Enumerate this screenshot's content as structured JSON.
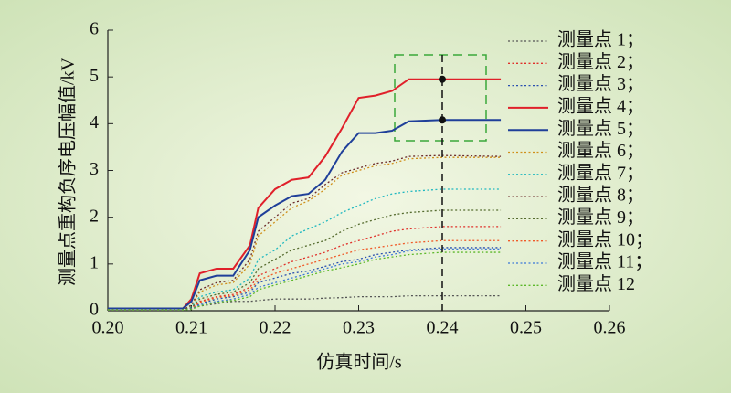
{
  "chart_data": {
    "type": "line",
    "x_label": "仿真时间/s",
    "y_label": "测量点重构负序电压幅值/kV",
    "x": [
      0.2,
      0.209,
      0.21,
      0.211,
      0.213,
      0.215,
      0.217,
      0.218,
      0.22,
      0.222,
      0.224,
      0.226,
      0.228,
      0.23,
      0.232,
      0.234,
      0.236,
      0.24,
      0.247
    ],
    "series": [
      {
        "name": "测量点 1；",
        "color": "#555555",
        "style": "dotted",
        "values": [
          0.02,
          0.02,
          0.05,
          0.1,
          0.15,
          0.2,
          0.2,
          0.22,
          0.25,
          0.25,
          0.25,
          0.27,
          0.28,
          0.3,
          0.3,
          0.3,
          0.32,
          0.32,
          0.32
        ]
      },
      {
        "name": "测量点 2；",
        "color": "#e0302a",
        "style": "dotted",
        "values": [
          0.02,
          0.02,
          0.05,
          0.2,
          0.3,
          0.35,
          0.5,
          0.75,
          0.9,
          1.05,
          1.15,
          1.25,
          1.4,
          1.5,
          1.6,
          1.7,
          1.75,
          1.8,
          1.8
        ]
      },
      {
        "name": "测量点 3；",
        "color": "#2a4fb0",
        "style": "dotted",
        "values": [
          0.02,
          0.02,
          0.04,
          0.15,
          0.25,
          0.3,
          0.4,
          0.6,
          0.7,
          0.8,
          0.85,
          0.95,
          1.05,
          1.1,
          1.2,
          1.25,
          1.3,
          1.35,
          1.35
        ]
      },
      {
        "name": "测量点 4；",
        "color": "#e0202a",
        "style": "solid",
        "values": [
          0.05,
          0.05,
          0.25,
          0.8,
          0.9,
          0.9,
          1.4,
          2.2,
          2.6,
          2.8,
          2.85,
          3.3,
          3.9,
          4.55,
          4.6,
          4.7,
          4.95,
          4.95,
          4.95
        ]
      },
      {
        "name": "测量点 5；",
        "color": "#1f3f99",
        "style": "solid",
        "values": [
          0.05,
          0.05,
          0.2,
          0.65,
          0.75,
          0.75,
          1.3,
          2.0,
          2.25,
          2.45,
          2.5,
          2.8,
          3.4,
          3.8,
          3.8,
          3.85,
          4.05,
          4.08,
          4.08
        ]
      },
      {
        "name": "测量点 6；",
        "color": "#d0901a",
        "style": "dotted",
        "values": [
          0.02,
          0.02,
          0.1,
          0.4,
          0.55,
          0.6,
          1.0,
          1.6,
          1.9,
          2.2,
          2.35,
          2.6,
          2.9,
          3.0,
          3.1,
          3.15,
          3.25,
          3.28,
          3.28
        ]
      },
      {
        "name": "测量点 7；",
        "color": "#20b8c0",
        "style": "dotted",
        "values": [
          0.02,
          0.02,
          0.08,
          0.3,
          0.4,
          0.45,
          0.7,
          1.1,
          1.3,
          1.6,
          1.75,
          1.9,
          2.1,
          2.25,
          2.4,
          2.5,
          2.55,
          2.6,
          2.6
        ]
      },
      {
        "name": "测量点 8；",
        "color": "#6b2a2a",
        "style": "dotted",
        "values": [
          0.02,
          0.02,
          0.12,
          0.45,
          0.6,
          0.65,
          1.1,
          1.7,
          2.0,
          2.3,
          2.4,
          2.7,
          2.95,
          3.05,
          3.15,
          3.2,
          3.3,
          3.32,
          3.3
        ]
      },
      {
        "name": "测量点 9；",
        "color": "#556b2f",
        "style": "dotted",
        "values": [
          0.02,
          0.02,
          0.06,
          0.25,
          0.35,
          0.4,
          0.6,
          0.9,
          1.1,
          1.3,
          1.4,
          1.5,
          1.7,
          1.85,
          1.95,
          2.05,
          2.1,
          2.15,
          2.15
        ]
      },
      {
        "name": "测量点 10；",
        "color": "#f05a28",
        "style": "dotted",
        "values": [
          0.02,
          0.02,
          0.04,
          0.18,
          0.28,
          0.32,
          0.45,
          0.65,
          0.8,
          0.9,
          1.0,
          1.1,
          1.2,
          1.3,
          1.35,
          1.4,
          1.45,
          1.5,
          1.5
        ]
      },
      {
        "name": "测量点 11；",
        "color": "#3a78d8",
        "style": "dotted",
        "values": [
          0.02,
          0.02,
          0.04,
          0.12,
          0.2,
          0.25,
          0.35,
          0.5,
          0.6,
          0.7,
          0.8,
          0.9,
          1.0,
          1.05,
          1.15,
          1.2,
          1.28,
          1.32,
          1.32
        ]
      },
      {
        "name": "测量点 12",
        "color": "#5cb82a",
        "style": "dotted",
        "values": [
          0.02,
          0.02,
          0.03,
          0.1,
          0.18,
          0.22,
          0.3,
          0.45,
          0.55,
          0.65,
          0.75,
          0.85,
          0.92,
          1.0,
          1.1,
          1.15,
          1.2,
          1.25,
          1.25
        ]
      }
    ],
    "xlim": [
      0.2,
      0.26
    ],
    "xticks": [
      {
        "value": 0.2,
        "label": "0.20"
      },
      0.21,
      0.22,
      0.23,
      0.24,
      0.25,
      0.26
    ],
    "ylim": [
      0,
      6
    ],
    "yticks": [
      0,
      1,
      2,
      3,
      4,
      5,
      6
    ],
    "grid": false,
    "legend": "right"
  }
}
